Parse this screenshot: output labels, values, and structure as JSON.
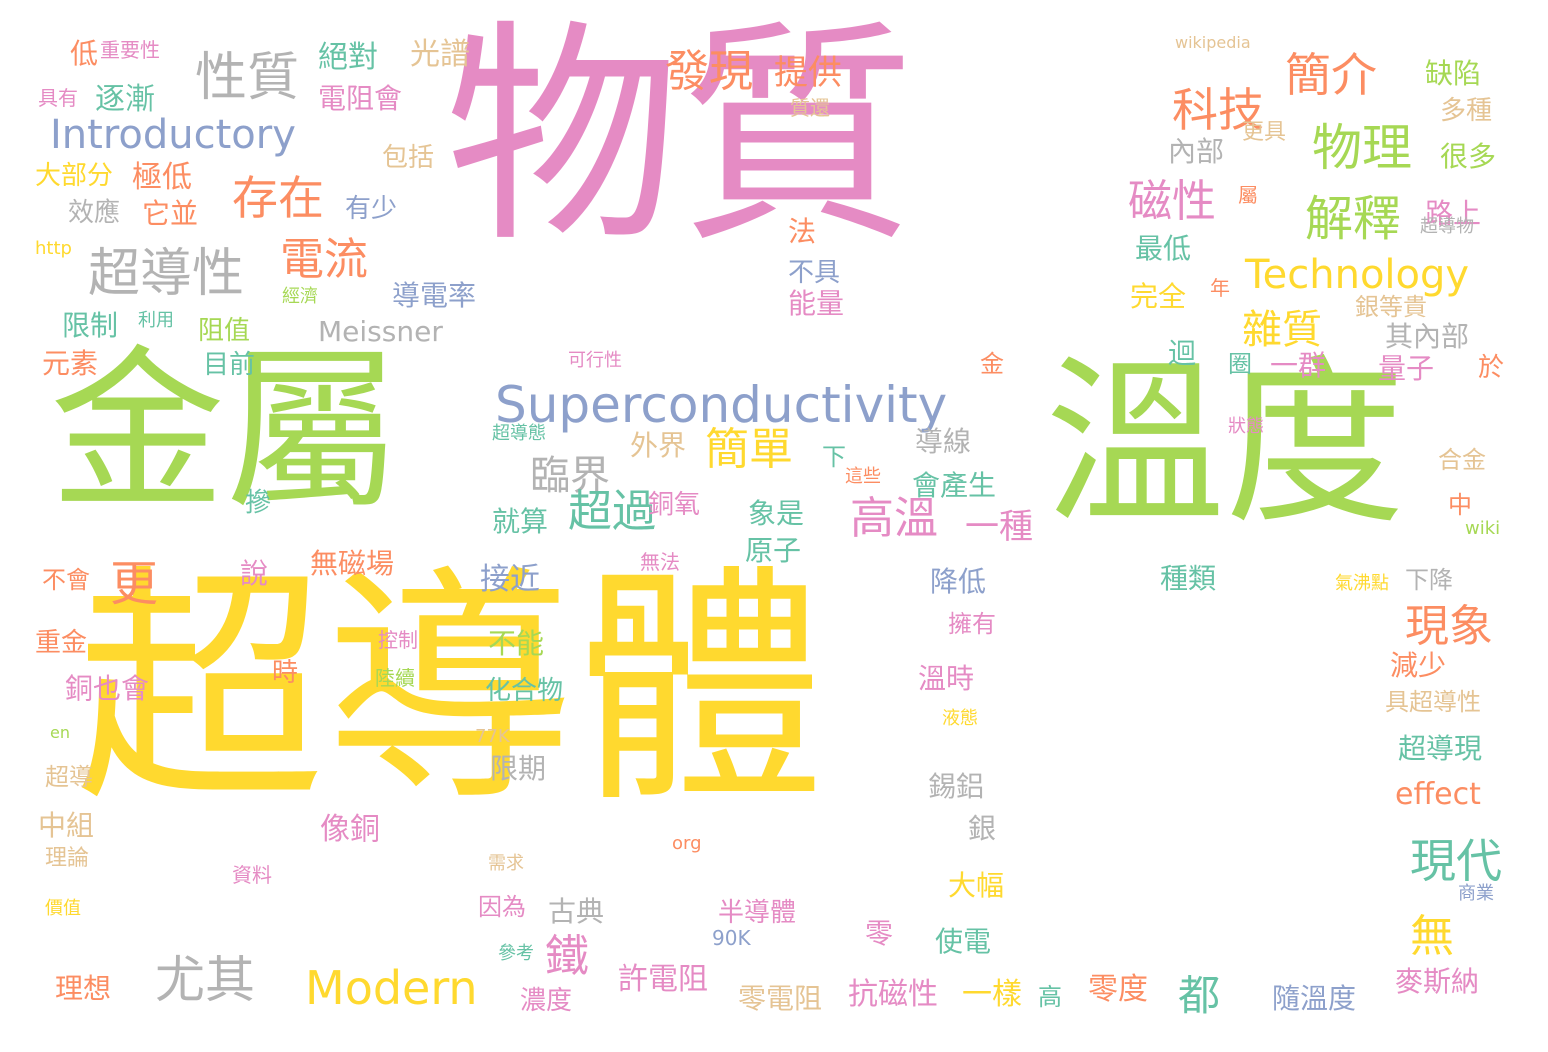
{
  "palette": {
    "pink": "#e58bc4",
    "green": "#a6d854",
    "yellow": "#ffd92f",
    "orange": "#fc8d62",
    "teal": "#66c2a5",
    "blue": "#8da0cb",
    "tan": "#e5c494",
    "gray": "#b3b3b3"
  },
  "words": [
    {
      "text": "物質",
      "color": "pink"
    },
    {
      "text": "超導體",
      "color": "yellow"
    },
    {
      "text": "金屬",
      "color": "green"
    },
    {
      "text": "溫度",
      "color": "green"
    },
    {
      "text": "Superconductivity",
      "color": "blue"
    },
    {
      "text": "Introductory",
      "color": "blue"
    },
    {
      "text": "性質",
      "color": "gray"
    },
    {
      "text": "超導性",
      "color": "gray"
    },
    {
      "text": "存在",
      "color": "orange"
    },
    {
      "text": "電流",
      "color": "orange"
    },
    {
      "text": "更",
      "color": "orange"
    },
    {
      "text": "發現",
      "color": "orange"
    },
    {
      "text": "提供",
      "color": "orange"
    },
    {
      "text": "科技",
      "color": "orange"
    },
    {
      "text": "簡介",
      "color": "orange"
    },
    {
      "text": "物理",
      "color": "green"
    },
    {
      "text": "磁性",
      "color": "pink"
    },
    {
      "text": "解釋",
      "color": "green"
    },
    {
      "text": "Technology",
      "color": "yellow"
    },
    {
      "text": "雜質",
      "color": "yellow"
    },
    {
      "text": "Meissner",
      "color": "gray"
    },
    {
      "text": "臨界",
      "color": "gray"
    },
    {
      "text": "簡單",
      "color": "yellow"
    },
    {
      "text": "超過",
      "color": "teal"
    },
    {
      "text": "高溫",
      "color": "pink"
    },
    {
      "text": "一種",
      "color": "pink"
    },
    {
      "text": "現象",
      "color": "orange"
    },
    {
      "text": "現代",
      "color": "teal"
    },
    {
      "text": "無",
      "color": "yellow"
    },
    {
      "text": "尤其",
      "color": "gray"
    },
    {
      "text": "Modern",
      "color": "yellow"
    },
    {
      "text": "鐵",
      "color": "pink"
    },
    {
      "text": "都",
      "color": "teal"
    },
    {
      "text": "絕對",
      "color": "teal"
    },
    {
      "text": "光譜",
      "color": "tan"
    },
    {
      "text": "wikipedia",
      "color": "tan"
    },
    {
      "text": "缺陷",
      "color": "green"
    },
    {
      "text": "低",
      "color": "orange"
    },
    {
      "text": "重要性",
      "color": "pink"
    },
    {
      "text": "逐漸",
      "color": "teal"
    },
    {
      "text": "電阻會",
      "color": "pink"
    },
    {
      "text": "具有",
      "color": "pink"
    },
    {
      "text": "包括",
      "color": "tan"
    },
    {
      "text": "大部分",
      "color": "yellow"
    },
    {
      "text": "極低",
      "color": "orange"
    },
    {
      "text": "效應",
      "color": "gray"
    },
    {
      "text": "它並",
      "color": "orange"
    },
    {
      "text": "有少",
      "color": "blue"
    },
    {
      "text": "http",
      "color": "yellow"
    },
    {
      "text": "限制",
      "color": "teal"
    },
    {
      "text": "利用",
      "color": "teal"
    },
    {
      "text": "經濟",
      "color": "green"
    },
    {
      "text": "阻值",
      "color": "green"
    },
    {
      "text": "元素",
      "color": "orange"
    },
    {
      "text": "目前",
      "color": "teal"
    },
    {
      "text": "導電率",
      "color": "blue"
    },
    {
      "text": "可行性",
      "color": "pink"
    },
    {
      "text": "內部",
      "color": "gray"
    },
    {
      "text": "很多",
      "color": "green"
    },
    {
      "text": "多種",
      "color": "tan"
    },
    {
      "text": "更具",
      "color": "tan"
    },
    {
      "text": "路上",
      "color": "pink"
    },
    {
      "text": "屬",
      "color": "orange"
    },
    {
      "text": "超導物",
      "color": "gray"
    },
    {
      "text": "最低",
      "color": "teal"
    },
    {
      "text": "完全",
      "color": "yellow"
    },
    {
      "text": "年",
      "color": "orange"
    },
    {
      "text": "銀等貴",
      "color": "tan"
    },
    {
      "text": "其內部",
      "color": "gray"
    },
    {
      "text": "迴",
      "color": "teal"
    },
    {
      "text": "圈",
      "color": "teal"
    },
    {
      "text": "一群",
      "color": "pink"
    },
    {
      "text": "量子",
      "color": "pink"
    },
    {
      "text": "於",
      "color": "orange"
    },
    {
      "text": "法",
      "color": "orange"
    },
    {
      "text": "不具",
      "color": "blue"
    },
    {
      "text": "能量",
      "color": "pink"
    },
    {
      "text": "金",
      "color": "orange"
    },
    {
      "text": "超導態",
      "color": "teal"
    },
    {
      "text": "狀態",
      "color": "pink"
    },
    {
      "text": "外界",
      "color": "tan"
    },
    {
      "text": "下",
      "color": "teal"
    },
    {
      "text": "導線",
      "color": "gray"
    },
    {
      "text": "會產生",
      "color": "teal"
    },
    {
      "text": "這些",
      "color": "orange"
    },
    {
      "text": "合金",
      "color": "tan"
    },
    {
      "text": "中",
      "color": "orange"
    },
    {
      "text": "wiki",
      "color": "green"
    },
    {
      "text": "摻",
      "color": "teal"
    },
    {
      "text": "銅氧",
      "color": "pink"
    },
    {
      "text": "就算",
      "color": "teal"
    },
    {
      "text": "象是",
      "color": "teal"
    },
    {
      "text": "原子",
      "color": "teal"
    },
    {
      "text": "不會",
      "color": "orange"
    },
    {
      "text": "說",
      "color": "pink"
    },
    {
      "text": "無磁場",
      "color": "orange"
    },
    {
      "text": "接近",
      "color": "blue"
    },
    {
      "text": "無法",
      "color": "pink"
    },
    {
      "text": "降低",
      "color": "blue"
    },
    {
      "text": "種類",
      "color": "teal"
    },
    {
      "text": "下降",
      "color": "gray"
    },
    {
      "text": "氣沸點",
      "color": "yellow"
    },
    {
      "text": "重金",
      "color": "orange"
    },
    {
      "text": "控制",
      "color": "pink"
    },
    {
      "text": "擁有",
      "color": "pink"
    },
    {
      "text": "不能",
      "color": "green"
    },
    {
      "text": "時",
      "color": "orange"
    },
    {
      "text": "陸續",
      "color": "green"
    },
    {
      "text": "溫時",
      "color": "pink"
    },
    {
      "text": "減少",
      "color": "orange"
    },
    {
      "text": "銅也會",
      "color": "pink"
    },
    {
      "text": "化合物",
      "color": "teal"
    },
    {
      "text": "具超導性",
      "color": "tan"
    },
    {
      "text": "en",
      "color": "green"
    },
    {
      "text": "77K",
      "color": "tan"
    },
    {
      "text": "液態",
      "color": "yellow"
    },
    {
      "text": "超導現",
      "color": "teal"
    },
    {
      "text": "超導",
      "color": "tan"
    },
    {
      "text": "限期",
      "color": "gray"
    },
    {
      "text": "錫鋁",
      "color": "gray"
    },
    {
      "text": "effect",
      "color": "orange"
    },
    {
      "text": "中組",
      "color": "tan"
    },
    {
      "text": "像銅",
      "color": "pink"
    },
    {
      "text": "銀",
      "color": "gray"
    },
    {
      "text": "理論",
      "color": "tan"
    },
    {
      "text": "org",
      "color": "orange"
    },
    {
      "text": "資料",
      "color": "pink"
    },
    {
      "text": "需求",
      "color": "tan"
    },
    {
      "text": "大幅",
      "color": "yellow"
    },
    {
      "text": "價值",
      "color": "yellow"
    },
    {
      "text": "古典",
      "color": "gray"
    },
    {
      "text": "因為",
      "color": "pink"
    },
    {
      "text": "半導體",
      "color": "pink"
    },
    {
      "text": "商業",
      "color": "blue"
    },
    {
      "text": "90K",
      "color": "blue"
    },
    {
      "text": "零",
      "color": "pink"
    },
    {
      "text": "使電",
      "color": "teal"
    },
    {
      "text": "參考",
      "color": "teal"
    },
    {
      "text": "理想",
      "color": "orange"
    },
    {
      "text": "許電阻",
      "color": "pink"
    },
    {
      "text": "零電阻",
      "color": "tan"
    },
    {
      "text": "抗磁性",
      "color": "pink"
    },
    {
      "text": "一樣",
      "color": "yellow"
    },
    {
      "text": "高",
      "color": "teal"
    },
    {
      "text": "零度",
      "color": "orange"
    },
    {
      "text": "麥斯納",
      "color": "pink"
    },
    {
      "text": "隨溫度",
      "color": "blue"
    },
    {
      "text": "濃度",
      "color": "pink"
    },
    {
      "text": "質還",
      "color": "tan"
    }
  ]
}
